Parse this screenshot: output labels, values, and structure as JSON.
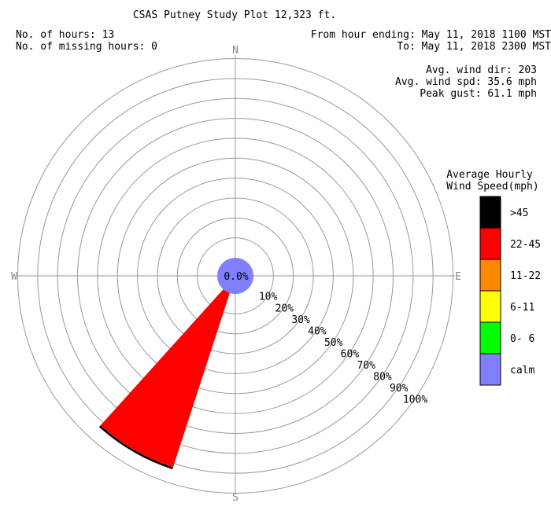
{
  "header": {
    "title": "CSAS Putney Study Plot 12,323 ft.",
    "hours_line": "No. of hours: 13",
    "missing_line": "No. of missing hours: 0",
    "from_line": "From hour ending: May 11, 2018 1100 MST",
    "to_line": "To: May 11, 2018 2300 MST",
    "avg_dir_line": "Avg. wind dir: 203",
    "avg_spd_line": "Avg. wind spd: 35.6 mph",
    "peak_gust_line": "Peak gust: 61.1 mph"
  },
  "compass": {
    "n": "N",
    "s": "S",
    "e": "E",
    "w": "W"
  },
  "legend": {
    "title_line1": "Average Hourly",
    "title_line2": "Wind Speed(mph)",
    "items": [
      {
        "label": ">45",
        "color": "#000000"
      },
      {
        "label": "22-45",
        "color": "#ff0000"
      },
      {
        "label": "11-22",
        "color": "#ff8800"
      },
      {
        "label": "6-11",
        "color": "#ffff00"
      },
      {
        "label": "0- 6",
        "color": "#00ff00"
      },
      {
        "label": "calm",
        "color": "#8080ff"
      }
    ]
  },
  "chart_data": {
    "type": "wind-rose",
    "radial_ticks": [
      "10%",
      "20%",
      "30%",
      "40%",
      "50%",
      "60%",
      "70%",
      "80%",
      "90%",
      "100%"
    ],
    "radial_max": 100,
    "calm_percent_label": "0.0%",
    "petals": [
      {
        "direction_deg": 210,
        "total_percent": 93,
        "segments": [
          {
            "speed_class": "22-45",
            "percent": 92,
            "color": "#ff0000"
          },
          {
            "speed_class": ">45",
            "percent": 1,
            "color": "#000000"
          }
        ]
      }
    ]
  }
}
